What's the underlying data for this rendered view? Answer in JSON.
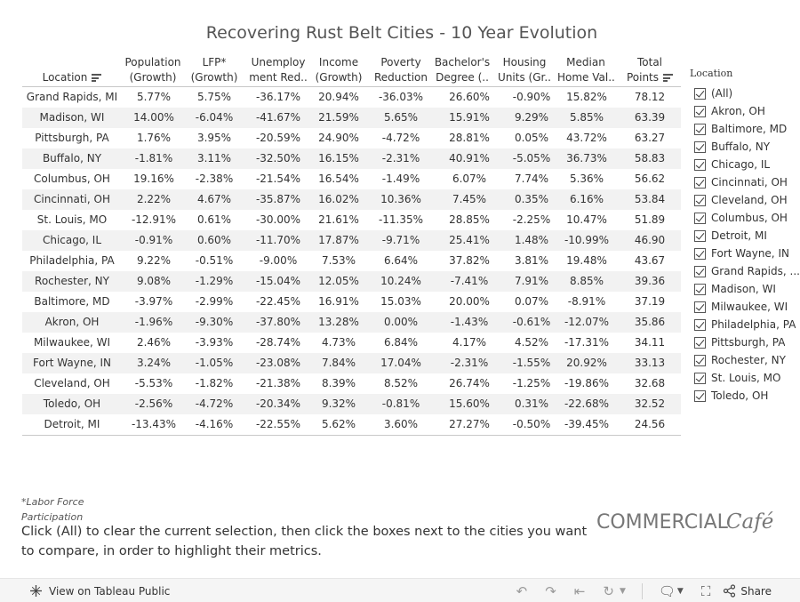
{
  "title": "Recovering Rust Belt Cities - 10 Year Evolution",
  "table": {
    "headers": [
      {
        "key": "location",
        "line1": "",
        "line2": "Location",
        "sortable": true
      },
      {
        "key": "population",
        "line1": "Population",
        "line2": "(Growth)"
      },
      {
        "key": "lfp",
        "line1": "LFP*",
        "line2": "(Growth)"
      },
      {
        "key": "unemployment",
        "line1": "Unemploy",
        "line2": "ment Red.."
      },
      {
        "key": "income",
        "line1": "Income",
        "line2": "(Growth)"
      },
      {
        "key": "poverty",
        "line1": "Poverty",
        "line2": "Reduction"
      },
      {
        "key": "bachelors",
        "line1": "Bachelor's",
        "line2": "Degree (.."
      },
      {
        "key": "housing",
        "line1": "Housing",
        "line2": "Units (Gr.."
      },
      {
        "key": "median_home",
        "line1": "Median",
        "line2": "Home Val.."
      },
      {
        "key": "total",
        "line1": "Total",
        "line2": "Points",
        "sortable": true
      }
    ],
    "rows": [
      [
        "Grand Rapids, MI",
        "5.77%",
        "5.75%",
        "-36.17%",
        "20.94%",
        "-36.03%",
        "26.60%",
        "-0.90%",
        "15.82%",
        "78.12"
      ],
      [
        "Madison, WI",
        "14.00%",
        "-6.04%",
        "-41.67%",
        "21.59%",
        "5.65%",
        "15.91%",
        "9.29%",
        "5.85%",
        "63.39"
      ],
      [
        "Pittsburgh, PA",
        "1.76%",
        "3.95%",
        "-20.59%",
        "24.90%",
        "-4.72%",
        "28.81%",
        "0.05%",
        "43.72%",
        "63.27"
      ],
      [
        "Buffalo, NY",
        "-1.81%",
        "3.11%",
        "-32.50%",
        "16.15%",
        "-2.31%",
        "40.91%",
        "-5.05%",
        "36.73%",
        "58.83"
      ],
      [
        "Columbus, OH",
        "19.16%",
        "-2.38%",
        "-21.54%",
        "16.54%",
        "-1.49%",
        "6.07%",
        "7.74%",
        "5.36%",
        "56.62"
      ],
      [
        "Cincinnati, OH",
        "2.22%",
        "4.67%",
        "-35.87%",
        "16.02%",
        "10.36%",
        "7.45%",
        "0.35%",
        "6.16%",
        "53.84"
      ],
      [
        "St. Louis, MO",
        "-12.91%",
        "0.61%",
        "-30.00%",
        "21.61%",
        "-11.35%",
        "28.85%",
        "-2.25%",
        "10.47%",
        "51.89"
      ],
      [
        "Chicago, IL",
        "-0.91%",
        "0.60%",
        "-11.70%",
        "17.87%",
        "-9.71%",
        "25.41%",
        "1.48%",
        "-10.99%",
        "46.90"
      ],
      [
        "Philadelphia, PA",
        "9.22%",
        "-0.51%",
        "-9.00%",
        "7.53%",
        "6.64%",
        "37.82%",
        "3.81%",
        "19.48%",
        "43.67"
      ],
      [
        "Rochester, NY",
        "9.08%",
        "-1.29%",
        "-15.04%",
        "12.05%",
        "10.24%",
        "-7.41%",
        "7.91%",
        "8.85%",
        "39.36"
      ],
      [
        "Baltimore, MD",
        "-3.97%",
        "-2.99%",
        "-22.45%",
        "16.91%",
        "15.03%",
        "20.00%",
        "0.07%",
        "-8.91%",
        "37.19"
      ],
      [
        "Akron, OH",
        "-1.96%",
        "-9.30%",
        "-37.80%",
        "13.28%",
        "0.00%",
        "-1.43%",
        "-0.61%",
        "-12.07%",
        "35.86"
      ],
      [
        "Milwaukee, WI",
        "2.46%",
        "-3.93%",
        "-28.74%",
        "4.73%",
        "6.84%",
        "4.17%",
        "4.52%",
        "-17.31%",
        "34.11"
      ],
      [
        "Fort Wayne, IN",
        "3.24%",
        "-1.05%",
        "-23.08%",
        "7.84%",
        "17.04%",
        "-2.31%",
        "-1.55%",
        "20.92%",
        "33.13"
      ],
      [
        "Cleveland, OH",
        "-5.53%",
        "-1.82%",
        "-21.38%",
        "8.39%",
        "8.52%",
        "26.74%",
        "-1.25%",
        "-19.86%",
        "32.68"
      ],
      [
        "Toledo, OH",
        "-2.56%",
        "-4.72%",
        "-20.34%",
        "9.32%",
        "-0.81%",
        "15.60%",
        "0.31%",
        "-22.68%",
        "32.52"
      ],
      [
        "Detroit, MI",
        "-13.43%",
        "-4.16%",
        "-22.55%",
        "5.62%",
        "3.60%",
        "27.27%",
        "-0.50%",
        "-39.45%",
        "24.56"
      ]
    ]
  },
  "filter": {
    "title": "Location",
    "items": [
      "(All)",
      "Akron, OH",
      "Baltimore, MD",
      "Buffalo, NY",
      "Chicago, IL",
      "Cincinnati, OH",
      "Cleveland, OH",
      "Columbus, OH",
      "Detroit, MI",
      "Fort Wayne, IN",
      "Grand Rapids, ...",
      "Madison, WI",
      "Milwaukee, WI",
      "Philadelphia, PA",
      "Pittsburgh, PA",
      "Rochester, NY",
      "St. Louis, MO",
      "Toledo, OH"
    ],
    "checked": true
  },
  "footnote": "*Labor Force Participation",
  "instructions": "Click (All) to clear the current selection, then click the boxes next to the cities you want to compare, in order to highlight their metrics.",
  "logo": {
    "main": "COMMERCIAL",
    "script": "Café"
  },
  "toolbar": {
    "view_label": "View on Tableau Public",
    "share_label": "Share"
  }
}
